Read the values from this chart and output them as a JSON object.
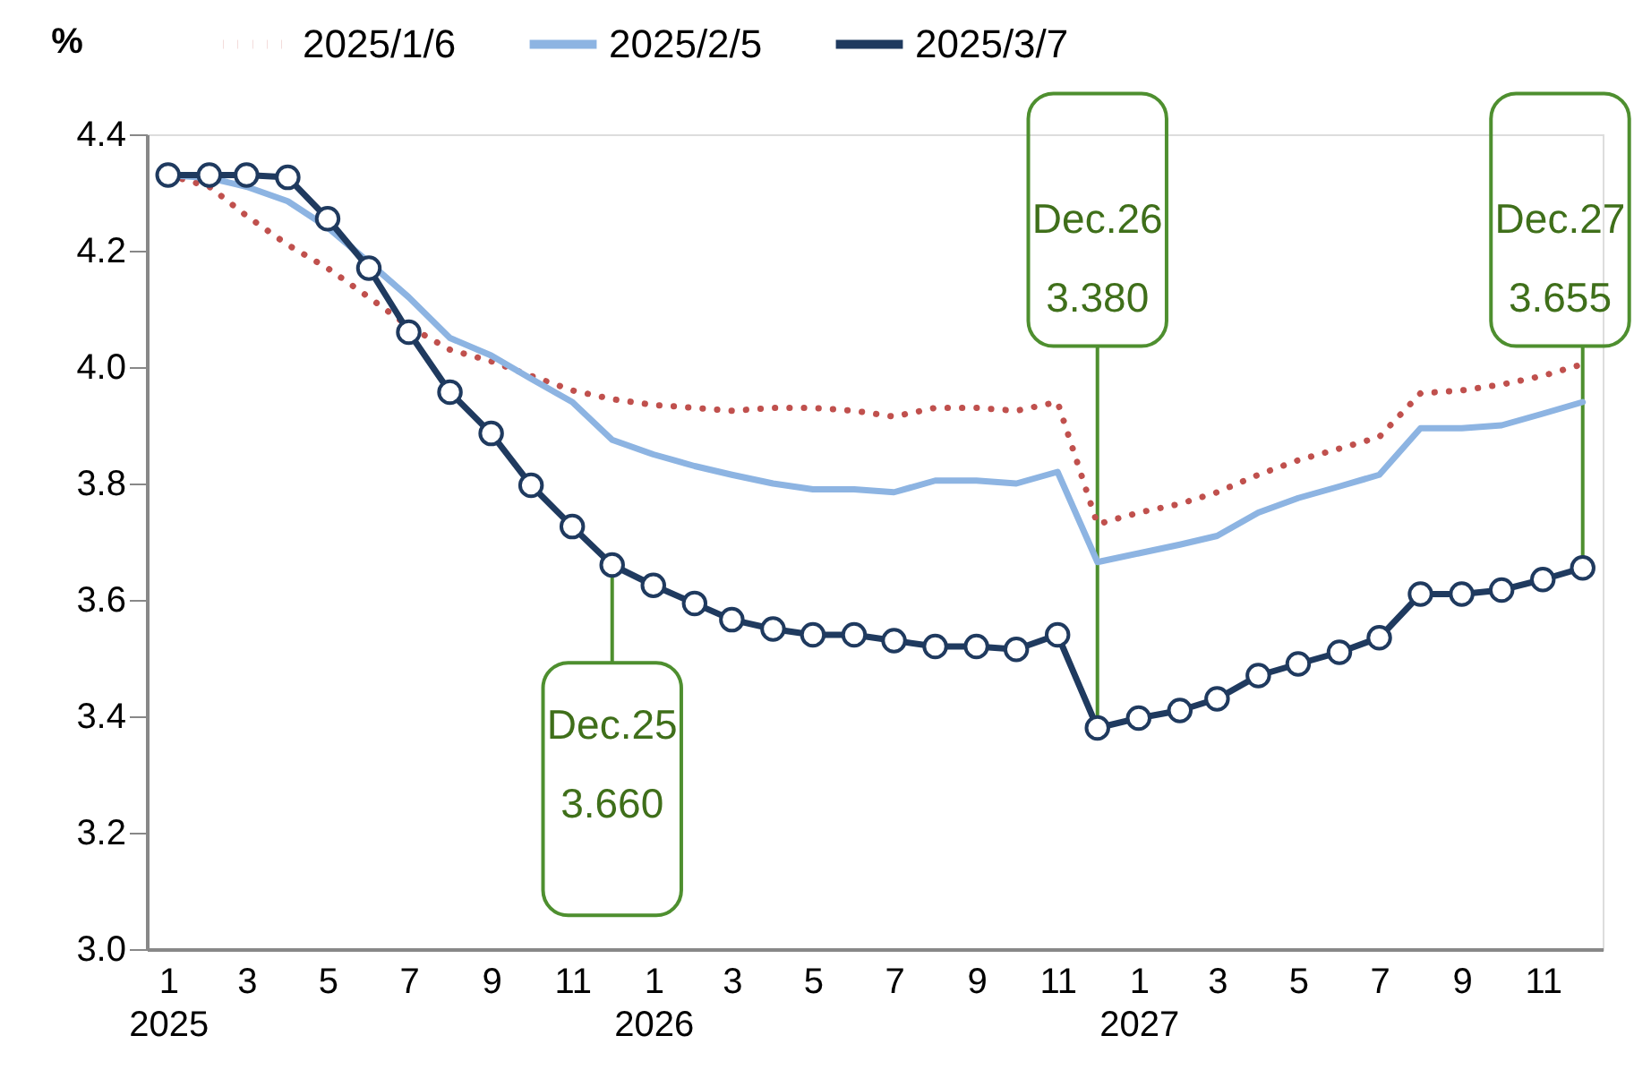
{
  "chart_data": {
    "type": "line",
    "ylabel": "%",
    "legend": "top",
    "x": [
      "2025-01",
      "2025-02",
      "2025-03",
      "2025-04",
      "2025-05",
      "2025-06",
      "2025-07",
      "2025-08",
      "2025-09",
      "2025-10",
      "2025-11",
      "2025-12",
      "2026-01",
      "2026-02",
      "2026-03",
      "2026-04",
      "2026-05",
      "2026-06",
      "2026-07",
      "2026-08",
      "2026-09",
      "2026-10",
      "2026-11",
      "2026-12",
      "2027-01",
      "2027-02",
      "2027-03",
      "2027-04",
      "2027-05",
      "2027-06",
      "2027-07",
      "2027-08",
      "2027-09",
      "2027-10",
      "2027-11",
      "2027-12"
    ],
    "xlim": [
      "2024-12-16",
      "2027-12-16"
    ],
    "xticks": [
      {
        "value": "2025-01",
        "label": "1\n2025"
      },
      {
        "value": "2025-03",
        "label": "3"
      },
      {
        "value": "2025-05",
        "label": "5"
      },
      {
        "value": "2025-07",
        "label": "7"
      },
      {
        "value": "2025-09",
        "label": "9"
      },
      {
        "value": "2025-11",
        "label": "11"
      },
      {
        "value": "2026-01",
        "label": "1\n2026"
      },
      {
        "value": "2026-03",
        "label": "3"
      },
      {
        "value": "2026-05",
        "label": "5"
      },
      {
        "value": "2026-07",
        "label": "7"
      },
      {
        "value": "2026-09",
        "label": "9"
      },
      {
        "value": "2026-11",
        "label": "11"
      },
      {
        "value": "2027-01",
        "label": "1\n2027"
      },
      {
        "value": "2027-03",
        "label": "3"
      },
      {
        "value": "2027-05",
        "label": "5"
      },
      {
        "value": "2027-07",
        "label": "7"
      },
      {
        "value": "2027-09",
        "label": "9"
      },
      {
        "value": "2027-11",
        "label": "11"
      }
    ],
    "ylim": [
      3.0,
      4.4
    ],
    "yticks": [
      {
        "value": 3.0,
        "label": "3.0"
      },
      {
        "value": 3.2,
        "label": "3.2"
      },
      {
        "value": 3.4,
        "label": "3.4"
      },
      {
        "value": 3.6,
        "label": "3.6"
      },
      {
        "value": 3.8,
        "label": "3.8"
      },
      {
        "value": 4.0,
        "label": "4.0"
      },
      {
        "value": 4.2,
        "label": "4.2"
      },
      {
        "value": 4.4,
        "label": "4.4"
      }
    ],
    "grid": false,
    "series": [
      {
        "name": "2025/1/6",
        "color": "#c0504d",
        "line_style": "dotted",
        "marker": "none",
        "values": [
          4.33,
          4.31,
          4.26,
          4.21,
          4.17,
          4.12,
          4.07,
          4.03,
          4.01,
          3.985,
          3.96,
          3.945,
          3.935,
          3.93,
          3.925,
          3.93,
          3.93,
          3.925,
          3.915,
          3.93,
          3.93,
          3.925,
          3.94,
          3.73,
          3.75,
          3.765,
          3.785,
          3.815,
          3.84,
          3.86,
          3.88,
          3.955,
          3.96,
          3.97,
          3.985,
          4.005
        ]
      },
      {
        "name": "2025/2/5",
        "color": "#8db4e2",
        "line_style": "solid",
        "marker": "none",
        "values": [
          4.33,
          4.325,
          4.31,
          4.285,
          4.24,
          4.18,
          4.12,
          4.05,
          4.02,
          3.98,
          3.94,
          3.875,
          3.85,
          3.83,
          3.815,
          3.8,
          3.79,
          3.79,
          3.785,
          3.805,
          3.805,
          3.8,
          3.82,
          3.665,
          3.68,
          3.695,
          3.71,
          3.75,
          3.775,
          3.795,
          3.815,
          3.895,
          3.895,
          3.9,
          3.92,
          3.94
        ]
      },
      {
        "name": "2025/3/7",
        "color": "#1f3a5f",
        "line_style": "solid",
        "marker": "circle",
        "values": [
          4.33,
          4.33,
          4.33,
          4.326,
          4.255,
          4.17,
          4.06,
          3.957,
          3.886,
          3.797,
          3.726,
          3.66,
          3.625,
          3.594,
          3.566,
          3.55,
          3.54,
          3.54,
          3.53,
          3.52,
          3.52,
          3.515,
          3.54,
          3.38,
          3.397,
          3.41,
          3.43,
          3.47,
          3.49,
          3.51,
          3.535,
          3.61,
          3.61,
          3.617,
          3.635,
          3.655
        ]
      }
    ],
    "annotations": [
      {
        "text": "Dec.25\n3.660",
        "x": "2025-12",
        "y": 3.66
      },
      {
        "text": "Dec.26\n3.380",
        "x": "2026-12",
        "y": 3.38
      },
      {
        "text": "Dec.27\n3.655",
        "x": "2027-12",
        "y": 3.655
      }
    ]
  }
}
